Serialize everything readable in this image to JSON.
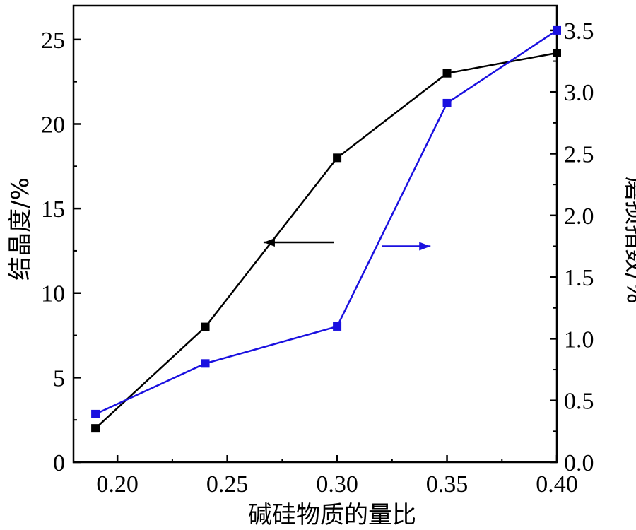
{
  "chart_data": {
    "type": "line",
    "xlabel": "碱硅物质的量比",
    "ylabel_left": "结晶度/%",
    "ylabel_right": "磨损指数/%",
    "xlim": [
      0.18,
      0.4
    ],
    "ylim_left": [
      0,
      27
    ],
    "ylim_right": [
      0,
      3.7
    ],
    "x_ticks": [
      "0.20",
      "0.25",
      "0.30",
      "0.35",
      "0.40"
    ],
    "y_left_ticks": [
      "0",
      "5",
      "10",
      "15",
      "20",
      "25"
    ],
    "y_right_ticks": [
      "0.0",
      "0.5",
      "1.0",
      "1.5",
      "2.0",
      "2.5",
      "3.0",
      "3.5"
    ],
    "x": [
      0.19,
      0.24,
      0.3,
      0.35,
      0.4
    ],
    "series": [
      {
        "values": [
          2.0,
          8.0,
          18.0,
          23.0,
          24.2
        ],
        "axis": "left",
        "color": "#000000",
        "marker": "square"
      },
      {
        "values": [
          0.39,
          0.8,
          1.1,
          2.91,
          3.5
        ],
        "axis": "right",
        "color": "#1a10e0",
        "marker": "square"
      }
    ],
    "annotations": [
      {
        "type": "arrow",
        "direction": "left",
        "points_to": "left axis",
        "color": "#000000"
      },
      {
        "type": "arrow",
        "direction": "right",
        "points_to": "right axis",
        "color": "#1a10e0"
      }
    ],
    "grid": false
  }
}
